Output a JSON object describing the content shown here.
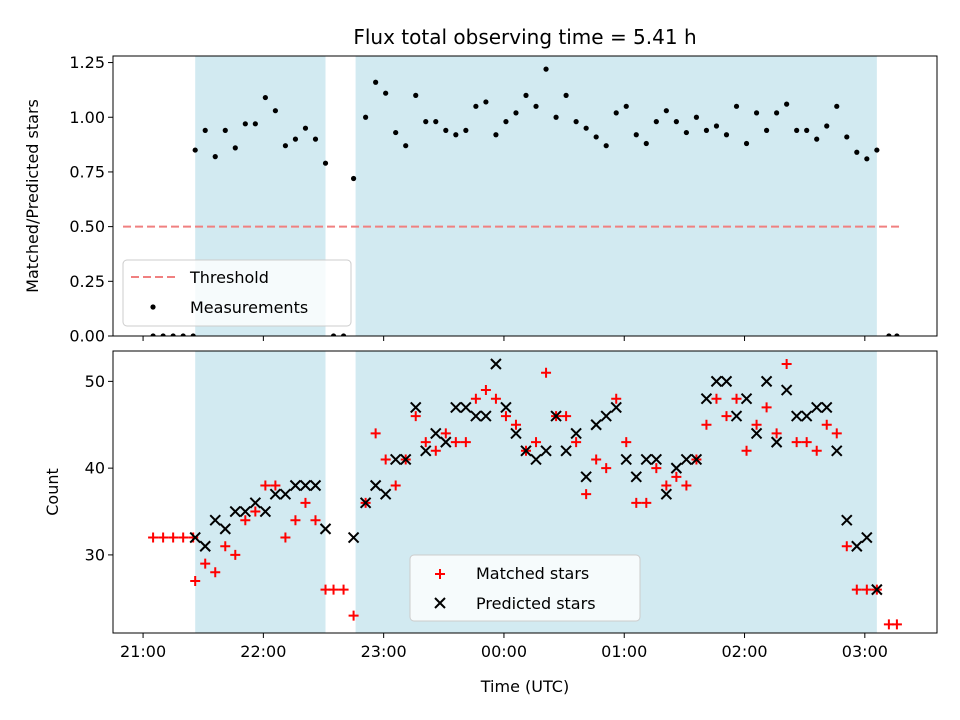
{
  "title": "Flux total observing time = 5.41 h",
  "chart_data": [
    {
      "type": "scatter",
      "panel": "top",
      "ylabel": "Matched/Predicted stars",
      "xlabel": "",
      "xlim": [
        "20:45",
        "03:36"
      ],
      "ylim": [
        0,
        1.28
      ],
      "yticks": [
        0.0,
        0.25,
        0.5,
        0.75,
        1.0,
        1.25
      ],
      "ytick_labels": [
        "0.00",
        "0.25",
        "0.50",
        "0.75",
        "1.00",
        "1.25"
      ],
      "xticks": [
        "21:00",
        "22:00",
        "23:00",
        "00:00",
        "01:00",
        "02:00",
        "03:00"
      ],
      "shaded_intervals": [
        [
          "21:26",
          "22:31"
        ],
        [
          "22:46",
          "03:06"
        ]
      ],
      "shade_color": "#add8e6",
      "threshold": {
        "name": "Threshold",
        "value": 0.5,
        "x": [
          "20:50",
          "03:18"
        ],
        "color": "#f08080"
      },
      "series": [
        {
          "name": "Measurements",
          "color": "#000000",
          "marker": "dot",
          "x": [
            "21:05",
            "21:10",
            "21:15",
            "21:20",
            "21:25",
            "21:26",
            "21:31",
            "21:36",
            "21:41",
            "21:46",
            "21:51",
            "21:56",
            "22:01",
            "22:06",
            "22:11",
            "22:16",
            "22:21",
            "22:26",
            "22:31",
            "22:35",
            "22:40",
            "22:45",
            "22:51",
            "22:56",
            "23:01",
            "23:06",
            "23:11",
            "23:16",
            "23:21",
            "23:26",
            "23:31",
            "23:36",
            "23:41",
            "23:46",
            "23:51",
            "23:56",
            "00:01",
            "00:06",
            "00:11",
            "00:16",
            "00:21",
            "00:26",
            "00:31",
            "00:36",
            "00:41",
            "00:46",
            "00:51",
            "00:56",
            "01:01",
            "01:06",
            "01:11",
            "01:16",
            "01:21",
            "01:26",
            "01:31",
            "01:36",
            "01:41",
            "01:46",
            "01:51",
            "01:56",
            "02:01",
            "02:06",
            "02:11",
            "02:16",
            "02:21",
            "02:26",
            "02:31",
            "02:36",
            "02:41",
            "02:46",
            "02:51",
            "02:56",
            "03:01",
            "03:06",
            "03:12",
            "03:16"
          ],
          "y": [
            0,
            0,
            0,
            0,
            0,
            0.85,
            0.94,
            0.82,
            0.94,
            0.86,
            0.97,
            0.97,
            1.09,
            1.03,
            0.87,
            0.9,
            0.95,
            0.9,
            0.79,
            0,
            0,
            0.72,
            1.0,
            1.16,
            1.11,
            0.93,
            0.87,
            1.1,
            0.98,
            0.98,
            0.94,
            0.92,
            0.94,
            1.05,
            1.07,
            0.92,
            0.98,
            1.02,
            1.1,
            1.05,
            1.22,
            1.0,
            1.1,
            0.98,
            0.95,
            0.91,
            0.87,
            1.02,
            1.05,
            0.92,
            0.88,
            0.98,
            1.03,
            0.98,
            0.93,
            1.0,
            0.94,
            0.96,
            0.92,
            1.05,
            0.88,
            1.02,
            0.94,
            1.02,
            1.06,
            0.94,
            0.94,
            0.9,
            0.96,
            1.05,
            0.91,
            0.84,
            0.81,
            0.85,
            0,
            0
          ]
        }
      ],
      "legend": {
        "position": "lower-left",
        "entries": [
          "Threshold",
          "Measurements"
        ]
      }
    },
    {
      "type": "scatter",
      "panel": "bottom",
      "ylabel": "Count",
      "xlabel": "Time (UTC)",
      "xlim": [
        "20:45",
        "03:36"
      ],
      "ylim": [
        21,
        53.5
      ],
      "yticks": [
        30,
        40,
        50
      ],
      "ytick_labels": [
        "30",
        "40",
        "50"
      ],
      "xticks": [
        "21:00",
        "22:00",
        "23:00",
        "00:00",
        "01:00",
        "02:00",
        "03:00"
      ],
      "xtick_labels": [
        "21:00",
        "22:00",
        "23:00",
        "00:00",
        "01:00",
        "02:00",
        "03:00"
      ],
      "shaded_intervals": [
        [
          "21:26",
          "22:31"
        ],
        [
          "22:46",
          "03:06"
        ]
      ],
      "shade_color": "#add8e6",
      "series": [
        {
          "name": "Matched stars",
          "color": "#ff0000",
          "marker": "plus",
          "x": [
            "21:05",
            "21:10",
            "21:15",
            "21:20",
            "21:25",
            "21:26",
            "21:31",
            "21:36",
            "21:41",
            "21:46",
            "21:51",
            "21:56",
            "22:01",
            "22:06",
            "22:11",
            "22:16",
            "22:21",
            "22:26",
            "22:31",
            "22:35",
            "22:40",
            "22:45",
            "22:51",
            "22:56",
            "23:01",
            "23:06",
            "23:11",
            "23:16",
            "23:21",
            "23:26",
            "23:31",
            "23:36",
            "23:41",
            "23:46",
            "23:51",
            "23:56",
            "00:01",
            "00:06",
            "00:11",
            "00:16",
            "00:21",
            "00:26",
            "00:31",
            "00:36",
            "00:41",
            "00:46",
            "00:51",
            "00:56",
            "01:01",
            "01:06",
            "01:11",
            "01:16",
            "01:21",
            "01:26",
            "01:31",
            "01:36",
            "01:41",
            "01:46",
            "01:51",
            "01:56",
            "02:01",
            "02:06",
            "02:11",
            "02:16",
            "02:21",
            "02:26",
            "02:31",
            "02:36",
            "02:41",
            "02:46",
            "02:51",
            "02:56",
            "03:01",
            "03:06",
            "03:12",
            "03:16"
          ],
          "y": [
            32,
            32,
            32,
            32,
            32,
            27,
            29,
            28,
            31,
            30,
            34,
            35,
            38,
            38,
            32,
            34,
            36,
            34,
            26,
            26,
            26,
            23,
            36,
            44,
            41,
            38,
            41,
            46,
            43,
            42,
            44,
            43,
            43,
            48,
            49,
            48,
            46,
            45,
            42,
            43,
            51,
            46,
            46,
            43,
            37,
            41,
            40,
            48,
            43,
            36,
            36,
            40,
            38,
            39,
            38,
            41,
            45,
            48,
            46,
            48,
            42,
            45,
            47,
            44,
            52,
            43,
            43,
            42,
            45,
            44,
            31,
            26,
            26,
            26,
            22,
            22
          ]
        },
        {
          "name": "Predicted stars",
          "color": "#000000",
          "marker": "cross",
          "x": [
            "21:26",
            "21:31",
            "21:36",
            "21:41",
            "21:46",
            "21:51",
            "21:56",
            "22:01",
            "22:06",
            "22:11",
            "22:16",
            "22:21",
            "22:26",
            "22:31",
            "22:45",
            "22:51",
            "22:56",
            "23:01",
            "23:06",
            "23:11",
            "23:16",
            "23:21",
            "23:26",
            "23:31",
            "23:36",
            "23:41",
            "23:46",
            "23:51",
            "23:56",
            "00:01",
            "00:06",
            "00:11",
            "00:16",
            "00:21",
            "00:26",
            "00:31",
            "00:36",
            "00:41",
            "00:46",
            "00:51",
            "00:56",
            "01:01",
            "01:06",
            "01:11",
            "01:16",
            "01:21",
            "01:26",
            "01:31",
            "01:36",
            "01:41",
            "01:46",
            "01:51",
            "01:56",
            "02:01",
            "02:06",
            "02:11",
            "02:16",
            "02:21",
            "02:26",
            "02:31",
            "02:36",
            "02:41",
            "02:46",
            "02:51",
            "02:56",
            "03:01",
            "03:06"
          ],
          "y": [
            32,
            31,
            34,
            33,
            35,
            35,
            36,
            35,
            37,
            37,
            38,
            38,
            38,
            33,
            32,
            36,
            38,
            37,
            41,
            41,
            47,
            42,
            44,
            43,
            47,
            47,
            46,
            46,
            52,
            47,
            44,
            42,
            41,
            42,
            46,
            42,
            44,
            39,
            45,
            46,
            47,
            41,
            39,
            41,
            41,
            37,
            40,
            41,
            41,
            48,
            50,
            50,
            46,
            48,
            44,
            50,
            43,
            49,
            46,
            46,
            47,
            47,
            42,
            34,
            31,
            32,
            26
          ]
        }
      ],
      "legend": {
        "position": "lower-center",
        "entries": [
          "Matched stars",
          "Predicted stars"
        ]
      }
    }
  ]
}
